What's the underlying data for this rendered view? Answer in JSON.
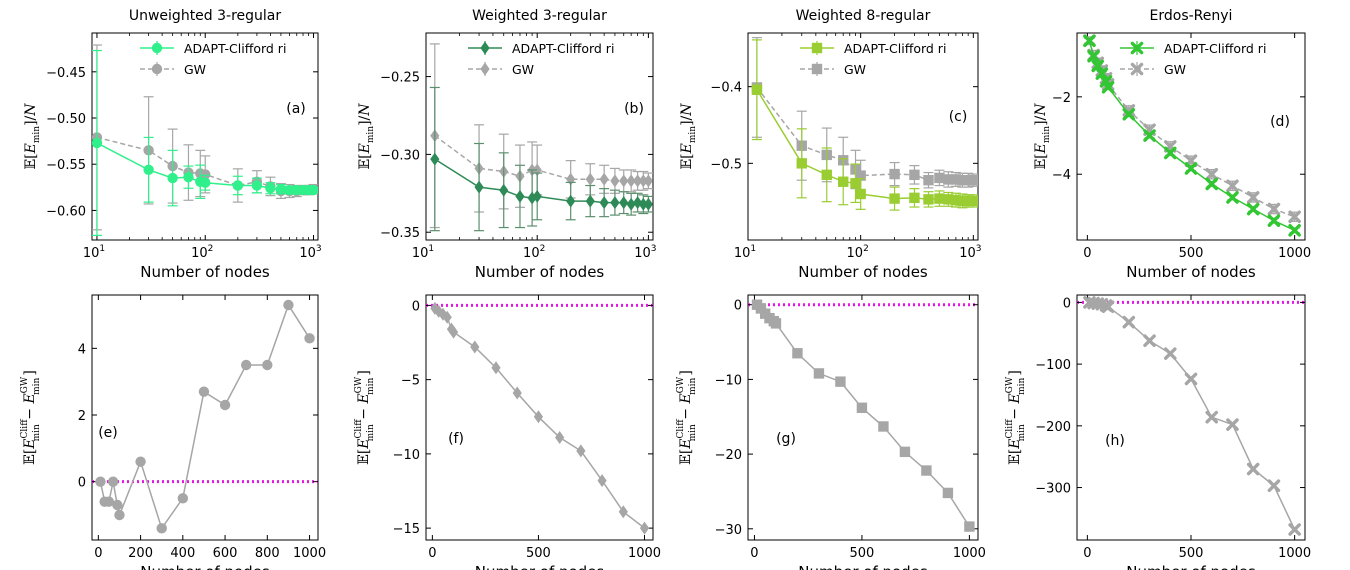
{
  "figure": {
    "legend_labels": [
      "ADAPT-Clifford ri",
      "GW"
    ],
    "zero_line_color": "#e815e8"
  },
  "chart_data": [
    {
      "type": "line",
      "title": "Unweighted 3-regular",
      "panel_label": "(a)",
      "xlabel": "Number of nodes",
      "ylabel": "E[E_min]/N",
      "xscale": "log",
      "xlim": [
        9,
        1100
      ],
      "ylim": [
        -0.632,
        -0.408
      ],
      "xticks": [
        10,
        100,
        1000
      ],
      "xtick_labels": [
        "10^1",
        "10^2",
        "10^3"
      ],
      "yticks": [
        -0.6,
        -0.55,
        -0.5,
        -0.45
      ],
      "ytick_labels": [
        "−0.60",
        "−0.55",
        "−0.50",
        "−0.45"
      ],
      "legend_position": "top-right",
      "series": [
        {
          "name": "ADAPT-Clifford ri",
          "color": "#2ff08a",
          "marker": "circle",
          "x": [
            10,
            30,
            50,
            70,
            90,
            100,
            200,
            300,
            400,
            500,
            600,
            700,
            800,
            900,
            1000
          ],
          "y": [
            -0.527,
            -0.556,
            -0.565,
            -0.564,
            -0.569,
            -0.57,
            -0.573,
            -0.573,
            -0.576,
            -0.577,
            -0.578,
            -0.578,
            -0.578,
            -0.578,
            -0.578
          ],
          "err": [
            0.1,
            0.035,
            0.03,
            0.012,
            0.018,
            0.008,
            0.01,
            0.008,
            0.006,
            0.005,
            0.004,
            0.004,
            0.003,
            0.003,
            0.003
          ]
        },
        {
          "name": "GW",
          "color": "#a6a6a6",
          "marker": "circle",
          "x": [
            10,
            30,
            50,
            70,
            90,
            100,
            200,
            300,
            400,
            500,
            600,
            700,
            800,
            900,
            1000
          ],
          "y": [
            -0.521,
            -0.535,
            -0.552,
            -0.559,
            -0.56,
            -0.561,
            -0.573,
            -0.569,
            -0.574,
            -0.579,
            -0.579,
            -0.579,
            -0.578,
            -0.578,
            -0.577
          ],
          "err": [
            0.1,
            0.058,
            0.04,
            0.03,
            0.025,
            0.02,
            0.018,
            0.012,
            0.01,
            0.008,
            0.007,
            0.006,
            0.005,
            0.005,
            0.005
          ]
        }
      ]
    },
    {
      "type": "line",
      "title": "Weighted 3-regular",
      "panel_label": "(b)",
      "xlabel": "Number of nodes",
      "ylabel": "E[E_min]/N",
      "xscale": "log",
      "xlim": [
        10,
        1100
      ],
      "ylim": [
        -0.355,
        -0.222
      ],
      "xticks": [
        10,
        100,
        1000
      ],
      "xtick_labels": [
        "10^1",
        "10^2",
        "10^3"
      ],
      "yticks": [
        -0.35,
        -0.3,
        -0.25
      ],
      "ytick_labels": [
        "−0.35",
        "−0.30",
        "−0.25"
      ],
      "legend_position": "top-right",
      "series": [
        {
          "name": "ADAPT-Clifford ri",
          "color": "#2e8b57",
          "marker": "diamond",
          "x": [
            12,
            30,
            50,
            70,
            90,
            100,
            200,
            300,
            400,
            500,
            600,
            700,
            800,
            900,
            1000
          ],
          "y": [
            -0.303,
            -0.321,
            -0.323,
            -0.327,
            -0.328,
            -0.327,
            -0.33,
            -0.33,
            -0.331,
            -0.331,
            -0.331,
            -0.332,
            -0.331,
            -0.332,
            -0.332
          ],
          "err": [
            0.046,
            0.028,
            0.024,
            0.02,
            0.018,
            0.015,
            0.012,
            0.01,
            0.009,
            0.008,
            0.007,
            0.007,
            0.006,
            0.006,
            0.005
          ]
        },
        {
          "name": "GW",
          "color": "#a6a6a6",
          "marker": "diamond",
          "x": [
            12,
            30,
            50,
            70,
            90,
            100,
            200,
            300,
            400,
            500,
            600,
            700,
            800,
            900,
            1000
          ],
          "y": [
            -0.288,
            -0.309,
            -0.311,
            -0.314,
            -0.31,
            -0.31,
            -0.316,
            -0.316,
            -0.316,
            -0.317,
            -0.317,
            -0.317,
            -0.317,
            -0.317,
            -0.317
          ],
          "err": [
            0.059,
            0.028,
            0.024,
            0.02,
            0.018,
            0.016,
            0.012,
            0.01,
            0.009,
            0.008,
            0.007,
            0.007,
            0.006,
            0.006,
            0.005
          ]
        }
      ]
    },
    {
      "type": "line",
      "title": "Weighted 8-regular",
      "panel_label": "(c)",
      "xlabel": "Number of nodes",
      "ylabel": "E[E_min]/N",
      "xscale": "log",
      "xlim": [
        10,
        1100
      ],
      "ylim": [
        -0.6,
        -0.33
      ],
      "xticks": [
        10,
        100,
        1000
      ],
      "xtick_labels": [
        "10^1",
        "10^2",
        "10^3"
      ],
      "yticks": [
        -0.5,
        -0.4
      ],
      "ytick_labels": [
        "−0.5",
        "−0.4"
      ],
      "legend_position": "top-right",
      "series": [
        {
          "name": "ADAPT-Clifford ri",
          "color": "#9acd32",
          "marker": "square",
          "x": [
            12,
            30,
            50,
            70,
            90,
            100,
            200,
            300,
            400,
            500,
            600,
            700,
            800,
            900,
            1000
          ],
          "y": [
            -0.404,
            -0.5,
            -0.515,
            -0.524,
            -0.526,
            -0.54,
            -0.546,
            -0.545,
            -0.547,
            -0.546,
            -0.547,
            -0.548,
            -0.549,
            -0.549,
            -0.549
          ],
          "err": [
            0.065,
            0.045,
            0.035,
            0.03,
            0.025,
            0.02,
            0.015,
            0.012,
            0.01,
            0.01,
            0.009,
            0.009,
            0.009,
            0.008,
            0.008
          ]
        },
        {
          "name": "GW",
          "color": "#a6a6a6",
          "marker": "square",
          "x": [
            12,
            30,
            50,
            70,
            90,
            100,
            200,
            300,
            400,
            500,
            600,
            700,
            800,
            900,
            1000
          ],
          "y": [
            -0.401,
            -0.477,
            -0.489,
            -0.496,
            -0.508,
            -0.516,
            -0.514,
            -0.515,
            -0.522,
            -0.519,
            -0.521,
            -0.521,
            -0.522,
            -0.522,
            -0.522
          ],
          "err": [
            0.065,
            0.045,
            0.035,
            0.03,
            0.025,
            0.02,
            0.015,
            0.012,
            0.01,
            0.01,
            0.01,
            0.009,
            0.009,
            0.009,
            0.008
          ]
        }
      ]
    },
    {
      "type": "line",
      "title": "Erdos-Renyi",
      "panel_label": "(d)",
      "xlabel": "Number of nodes",
      "ylabel": "E[E_min]/N",
      "xscale": "linear",
      "xlim": [
        -50,
        1050
      ],
      "ylim": [
        -5.7,
        -0.35
      ],
      "xticks": [
        0,
        500,
        1000
      ],
      "xtick_labels": [
        "0",
        "500",
        "1000"
      ],
      "yticks": [
        -4,
        -2
      ],
      "ytick_labels": [
        "−4",
        "−2"
      ],
      "legend_position": "top-right",
      "series": [
        {
          "name": "ADAPT-Clifford ri",
          "color": "#33c633",
          "marker": "x",
          "x": [
            10,
            30,
            50,
            70,
            90,
            100,
            200,
            300,
            400,
            500,
            600,
            700,
            800,
            900,
            1000
          ],
          "y": [
            -0.55,
            -0.95,
            -1.2,
            -1.4,
            -1.6,
            -1.75,
            -2.45,
            -3.0,
            -3.45,
            -3.85,
            -4.25,
            -4.6,
            -4.9,
            -5.2,
            -5.45
          ],
          "err": [
            0.06,
            0.06,
            0.06,
            0.06,
            0.06,
            0.06,
            0.06,
            0.06,
            0.06,
            0.06,
            0.06,
            0.06,
            0.06,
            0.06,
            0.06
          ]
        },
        {
          "name": "GW",
          "color": "#a6a6a6",
          "marker": "x",
          "x": [
            10,
            30,
            50,
            70,
            90,
            100,
            200,
            300,
            400,
            500,
            600,
            700,
            800,
            900,
            1000
          ],
          "y": [
            -0.55,
            -0.92,
            -1.12,
            -1.32,
            -1.52,
            -1.68,
            -2.35,
            -2.85,
            -3.28,
            -3.65,
            -4.0,
            -4.3,
            -4.6,
            -4.9,
            -5.1
          ],
          "err": [
            0.1,
            0.12,
            0.12,
            0.12,
            0.12,
            0.12,
            0.12,
            0.12,
            0.12,
            0.12,
            0.12,
            0.12,
            0.12,
            0.12,
            0.12
          ]
        }
      ]
    },
    {
      "type": "line",
      "panel_label": "(e)",
      "xlabel": "Number of nodes",
      "ylabel": "E[E_min^Cliff − E_min^GW]",
      "xscale": "linear",
      "xlim": [
        -30,
        1040
      ],
      "ylim": [
        -1.75,
        5.6
      ],
      "xticks": [
        0,
        200,
        400,
        600,
        800,
        1000
      ],
      "xtick_labels": [
        "0",
        "200",
        "400",
        "600",
        "800",
        "1000"
      ],
      "yticks": [
        0,
        2,
        4
      ],
      "ytick_labels": [
        "0",
        "2",
        "4"
      ],
      "zero_line": true,
      "series": [
        {
          "name": "",
          "color": "#a6a6a6",
          "marker": "circle",
          "x": [
            10,
            30,
            50,
            70,
            90,
            100,
            200,
            300,
            400,
            500,
            600,
            700,
            800,
            900,
            1000
          ],
          "y": [
            0.0,
            -0.6,
            -0.6,
            0.0,
            -0.7,
            -1.0,
            0.6,
            -1.4,
            -0.5,
            2.7,
            2.3,
            3.5,
            3.5,
            5.3,
            4.3
          ]
        }
      ]
    },
    {
      "type": "line",
      "panel_label": "(f)",
      "xlabel": "Number of nodes",
      "ylabel": "E[E_min^Cliff − E_min^GW]",
      "xscale": "linear",
      "xlim": [
        -30,
        1040
      ],
      "ylim": [
        -15.8,
        0.7
      ],
      "xticks": [
        0,
        500,
        1000
      ],
      "xtick_labels": [
        "0",
        "500",
        "1000"
      ],
      "yticks": [
        -15,
        -10,
        -5,
        0
      ],
      "ytick_labels": [
        "−15",
        "−10",
        "−5",
        "0"
      ],
      "zero_line": true,
      "series": [
        {
          "name": "",
          "color": "#a6a6a6",
          "marker": "diamond",
          "x": [
            12,
            30,
            50,
            70,
            90,
            100,
            200,
            300,
            400,
            500,
            600,
            700,
            800,
            900,
            1000
          ],
          "y": [
            -0.2,
            -0.4,
            -0.6,
            -0.8,
            -1.6,
            -1.8,
            -2.8,
            -4.2,
            -5.9,
            -7.5,
            -8.9,
            -9.8,
            -11.8,
            -13.9,
            -15.0
          ]
        }
      ]
    },
    {
      "type": "line",
      "panel_label": "(g)",
      "xlabel": "Number of nodes",
      "ylabel": "E[E_min^Cliff − E_min^GW]",
      "xscale": "linear",
      "xlim": [
        -30,
        1040
      ],
      "ylim": [
        -31.5,
        1.3
      ],
      "xticks": [
        0,
        500,
        1000
      ],
      "xtick_labels": [
        "0",
        "500",
        "1000"
      ],
      "yticks": [
        -30,
        -20,
        -10,
        0
      ],
      "ytick_labels": [
        "−30",
        "−20",
        "−10",
        "0"
      ],
      "zero_line": true,
      "series": [
        {
          "name": "",
          "color": "#a6a6a6",
          "marker": "square",
          "x": [
            12,
            30,
            50,
            70,
            90,
            100,
            200,
            300,
            400,
            500,
            600,
            700,
            800,
            900,
            1000
          ],
          "y": [
            0.0,
            -0.5,
            -1.2,
            -1.8,
            -2.2,
            -2.5,
            -6.5,
            -9.2,
            -10.3,
            -13.8,
            -16.3,
            -19.7,
            -22.2,
            -25.2,
            -29.7
          ]
        }
      ]
    },
    {
      "type": "line",
      "panel_label": "(h)",
      "xlabel": "Number of nodes",
      "ylabel": "E[E_min^Cliff − E_min^GW]",
      "xscale": "linear",
      "xlim": [
        -50,
        1050
      ],
      "ylim": [
        -385,
        12
      ],
      "xticks": [
        0,
        500,
        1000
      ],
      "xtick_labels": [
        "0",
        "500",
        "1000"
      ],
      "yticks": [
        -300,
        -200,
        -100,
        0
      ],
      "ytick_labels": [
        "−300",
        "−200",
        "−100",
        "0"
      ],
      "zero_line": true,
      "series": [
        {
          "name": "",
          "color": "#a6a6a6",
          "marker": "x",
          "x": [
            10,
            30,
            50,
            70,
            90,
            100,
            200,
            300,
            400,
            500,
            600,
            700,
            800,
            900,
            1000
          ],
          "y": [
            0,
            -1,
            -2,
            -3,
            -5,
            -7,
            -32,
            -62,
            -83,
            -124,
            -186,
            -198,
            -270,
            -297,
            -368
          ]
        }
      ]
    }
  ]
}
